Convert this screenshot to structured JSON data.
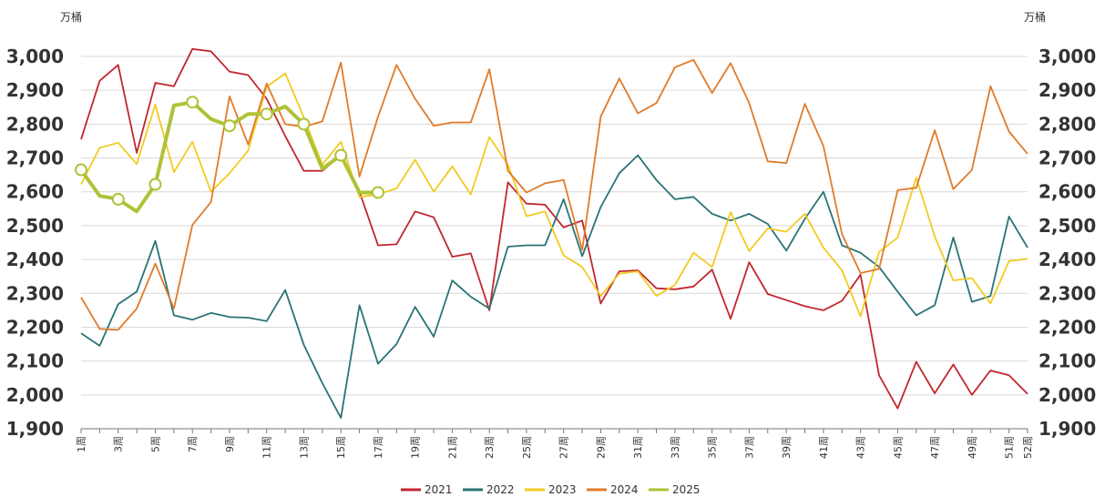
{
  "chart_data": {
    "type": "line",
    "unit_left": "万桶",
    "unit_right": "万桶",
    "ylim": [
      1900,
      3000
    ],
    "yticks": [
      1900,
      2000,
      2100,
      2200,
      2300,
      2400,
      2500,
      2600,
      2700,
      2800,
      2900,
      3000
    ],
    "ytick_labels": [
      "1,900",
      "2,000",
      "2,100",
      "2,200",
      "2,300",
      "2,400",
      "2,500",
      "2,600",
      "2,700",
      "2,800",
      "2,900",
      "3,000"
    ],
    "x_labels": [
      "1周",
      "3周",
      "5周",
      "7周",
      "9周",
      "11周",
      "13周",
      "15周",
      "17周",
      "19周",
      "21周",
      "23周",
      "25周",
      "27周",
      "29周",
      "31周",
      "33周",
      "35周",
      "37周",
      "39周",
      "41周",
      "43周",
      "45周",
      "47周",
      "49周",
      "51周",
      "52周"
    ],
    "x_label_weeks": [
      1,
      3,
      5,
      7,
      9,
      11,
      13,
      15,
      17,
      19,
      21,
      23,
      25,
      27,
      29,
      31,
      33,
      35,
      37,
      39,
      41,
      43,
      45,
      47,
      49,
      51,
      52
    ],
    "grid": "horizontal",
    "legend_position": "bottom",
    "series": [
      {
        "name": "2021",
        "color": "#c1272d",
        "values": [
          2755,
          2928,
          2975,
          2715,
          2922,
          2912,
          3022,
          3015,
          2955,
          2945,
          2875,
          2765,
          2662,
          2662,
          2708,
          2600,
          2442,
          2445,
          2542,
          2525,
          2408,
          2418,
          2250,
          2628,
          2565,
          2562,
          2495,
          2515,
          2270,
          2365,
          2368,
          2315,
          2312,
          2320,
          2370,
          2225,
          2392,
          2298,
          2280,
          2262,
          2250,
          2278,
          2355,
          2058,
          1960,
          2098,
          2005,
          2090,
          2000,
          2072,
          2058,
          2003
        ]
      },
      {
        "name": "2022",
        "color": "#2a7375",
        "values": [
          2182,
          2145,
          2268,
          2305,
          2455,
          2235,
          2222,
          2242,
          2230,
          2228,
          2218,
          2310,
          2148,
          2035,
          1932,
          2265,
          2092,
          2150,
          2260,
          2172,
          2338,
          2290,
          2255,
          2438,
          2442,
          2442,
          2578,
          2410,
          2555,
          2655,
          2708,
          2635,
          2578,
          2585,
          2535,
          2515,
          2535,
          2505,
          2426,
          2520,
          2600,
          2442,
          2420,
          2378,
          2305,
          2235,
          2265,
          2465,
          2275,
          2292,
          2527,
          2435
        ]
      },
      {
        "name": "2023",
        "color": "#f2cb22",
        "values": [
          2622,
          2730,
          2745,
          2682,
          2858,
          2658,
          2748,
          2600,
          2655,
          2722,
          2910,
          2950,
          2820,
          2680,
          2748,
          2585,
          2592,
          2610,
          2695,
          2600,
          2675,
          2592,
          2762,
          2680,
          2528,
          2542,
          2412,
          2378,
          2292,
          2358,
          2365,
          2292,
          2325,
          2420,
          2378,
          2540,
          2425,
          2492,
          2482,
          2535,
          2435,
          2368,
          2232,
          2422,
          2465,
          2642,
          2468,
          2338,
          2345,
          2270,
          2395,
          2402
        ]
      },
      {
        "name": "2024",
        "color": "#e07b2a",
        "values": [
          2288,
          2195,
          2192,
          2255,
          2388,
          2255,
          2502,
          2570,
          2882,
          2740,
          2920,
          2800,
          2792,
          2808,
          2982,
          2645,
          2822,
          2975,
          2875,
          2795,
          2805,
          2805,
          2962,
          2662,
          2598,
          2625,
          2635,
          2428,
          2822,
          2935,
          2832,
          2862,
          2968,
          2990,
          2892,
          2980,
          2862,
          2690,
          2685,
          2860,
          2735,
          2475,
          2360,
          2372,
          2605,
          2612,
          2782,
          2608,
          2665,
          2912,
          2778,
          2712
        ]
      },
      {
        "name": "2025",
        "color": "#afc236",
        "marker_weeks": [
          1,
          3,
          5,
          7,
          9,
          11,
          13,
          15,
          17
        ],
        "values": [
          2665,
          2588,
          2578,
          2542,
          2622,
          2855,
          2865,
          2815,
          2795,
          2830,
          2830,
          2852,
          2800,
          2668,
          2708,
          2598,
          2598
        ]
      }
    ]
  }
}
